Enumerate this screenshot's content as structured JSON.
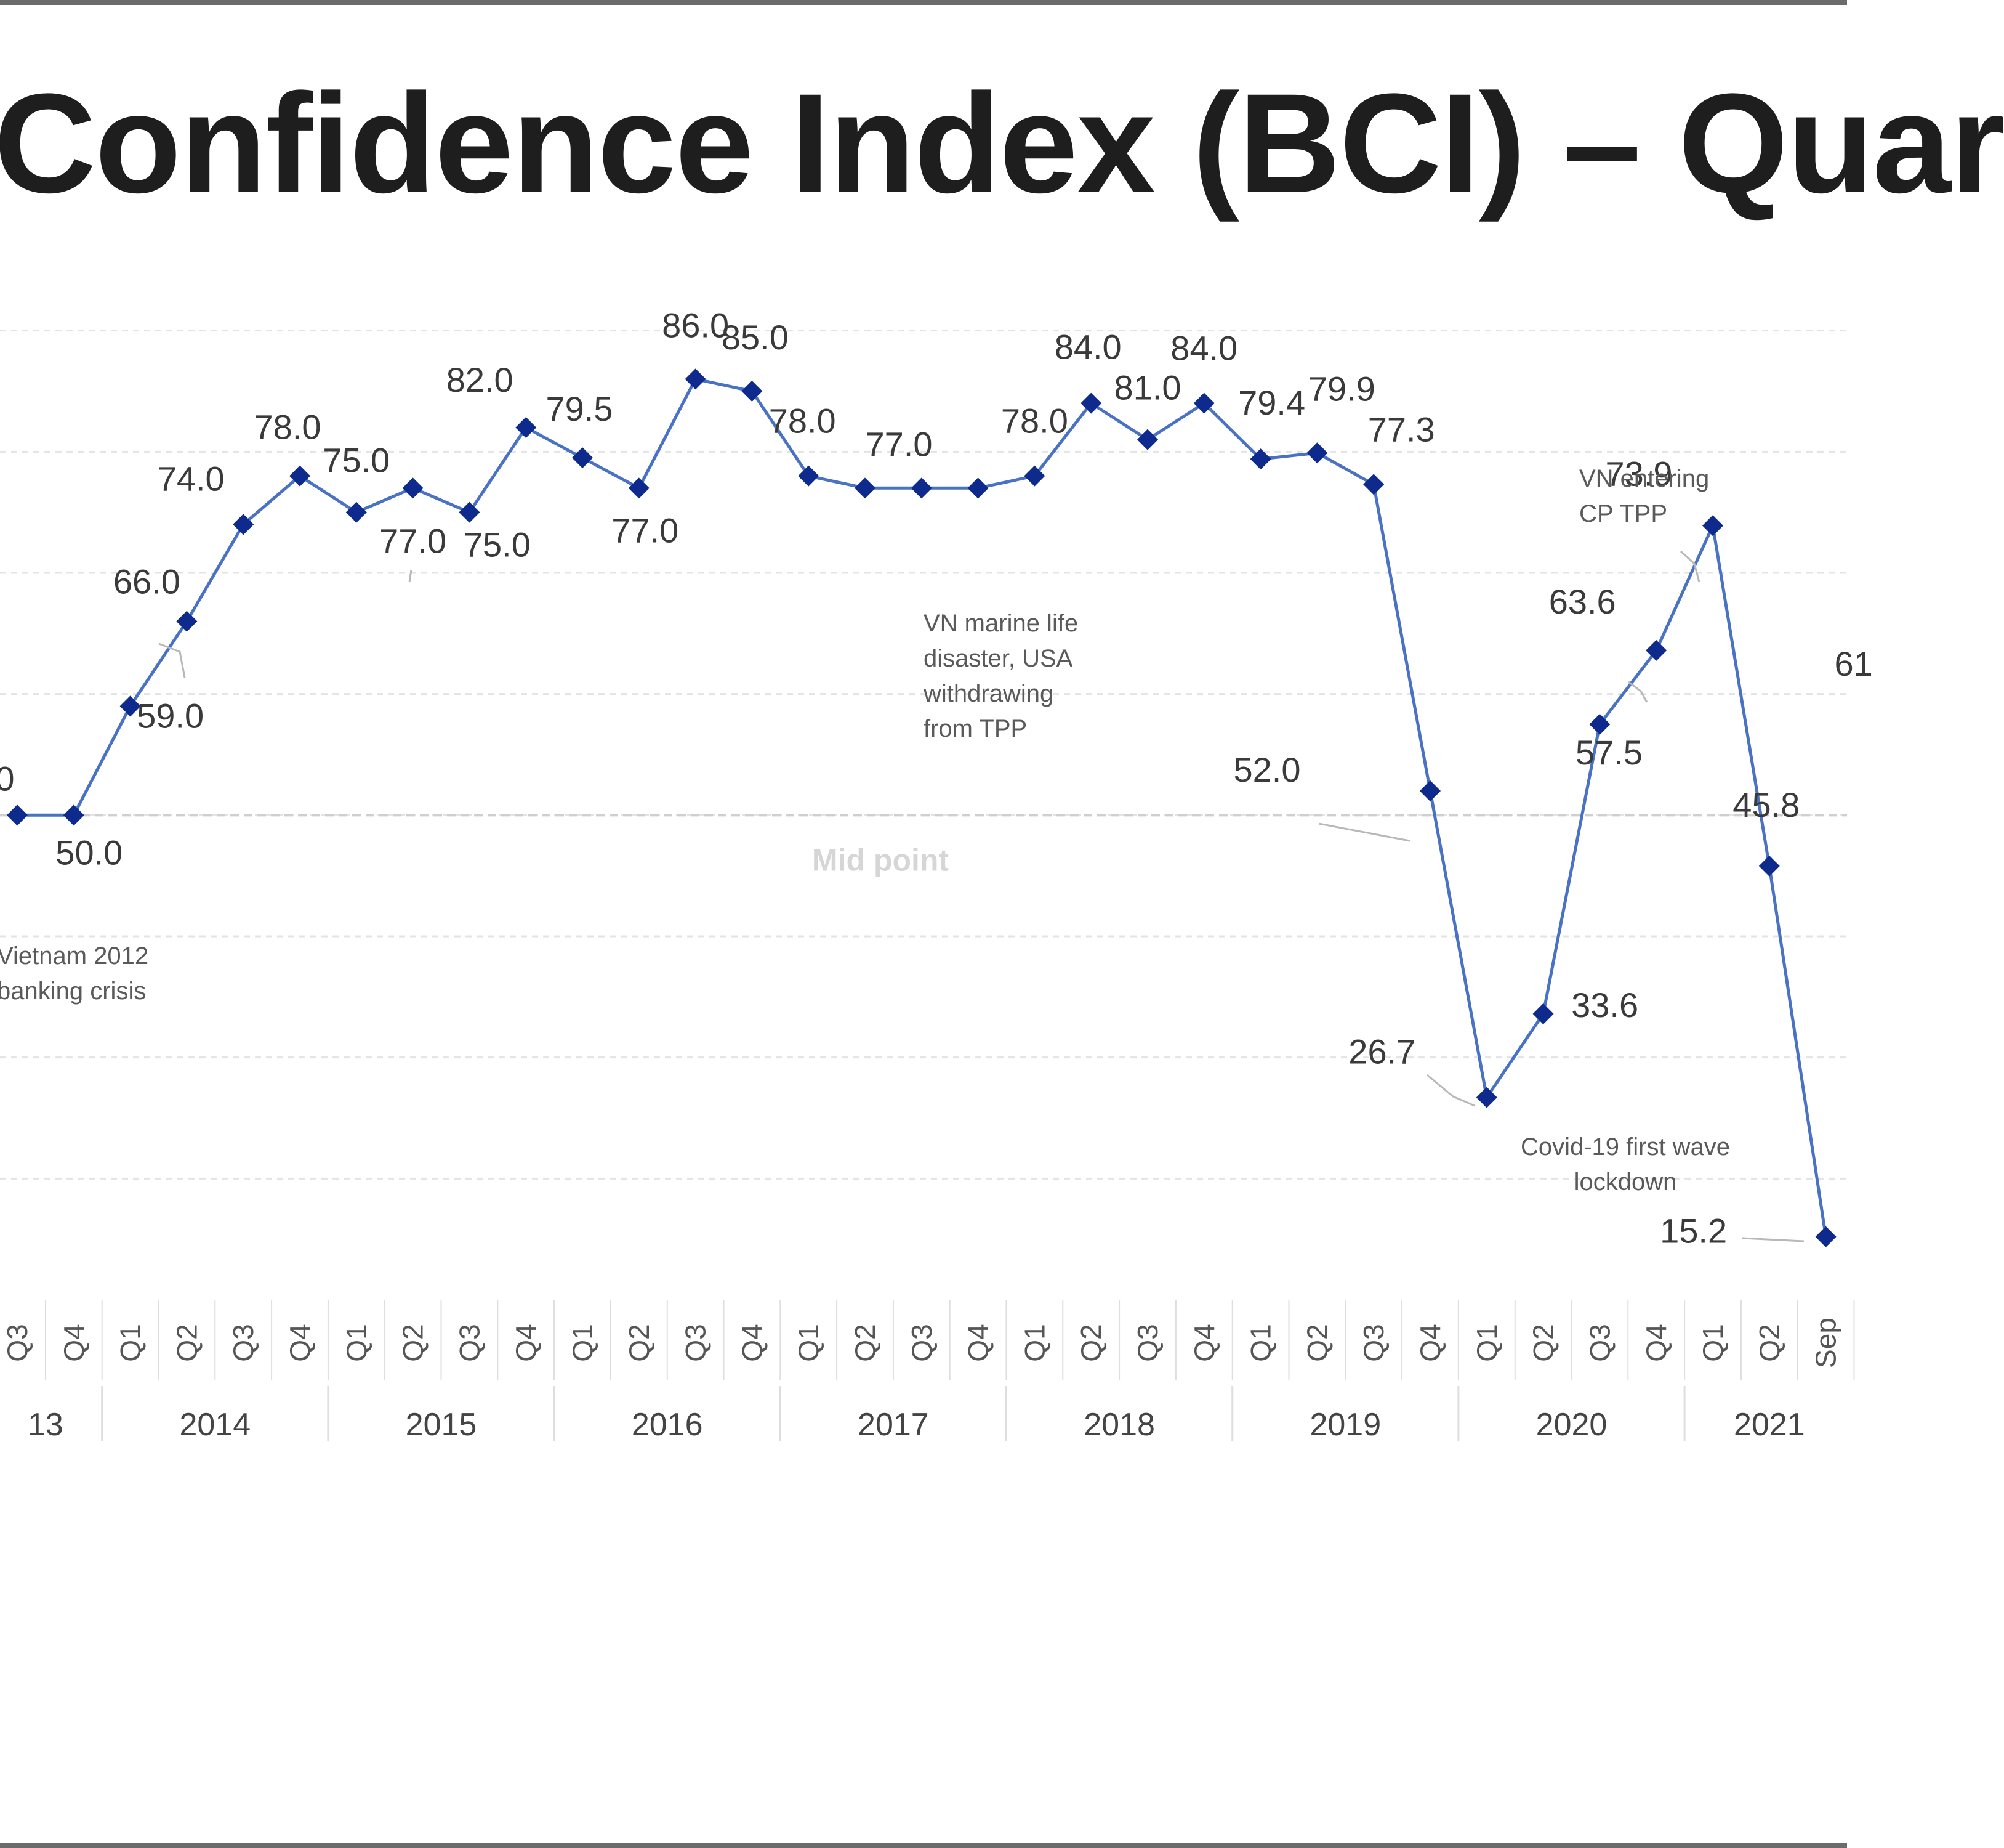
{
  "chart_data": {
    "type": "line",
    "title": "Confidence Index (BCI) – Quar",
    "x": [
      "2013-Q3",
      "2013-Q4",
      "2014-Q1",
      "2014-Q2",
      "2014-Q3",
      "2014-Q4",
      "2015-Q1",
      "2015-Q2",
      "2015-Q3",
      "2015-Q4",
      "2016-Q1",
      "2016-Q2",
      "2016-Q3",
      "2016-Q4",
      "2017-Q1",
      "2017-Q2",
      "2017-Q3",
      "2017-Q4",
      "2018-Q1",
      "2018-Q2",
      "2018-Q3",
      "2018-Q4",
      "2019-Q1",
      "2019-Q2",
      "2019-Q3",
      "2019-Q4",
      "2020-Q1",
      "2020-Q2",
      "2020-Q3",
      "2020-Q4",
      "2021-Q1",
      "2021-Q2",
      "2021-Sep"
    ],
    "tick_labels": [
      "Q3",
      "Q4",
      "Q1",
      "Q2",
      "Q3",
      "Q4",
      "Q1",
      "Q2",
      "Q3",
      "Q4",
      "Q1",
      "Q2",
      "Q3",
      "Q4",
      "Q1",
      "Q2",
      "Q3",
      "Q4",
      "Q1",
      "Q2",
      "Q3",
      "Q4",
      "Q1",
      "Q2",
      "Q3",
      "Q4",
      "Q1",
      "Q2",
      "Q3",
      "Q4",
      "Q1",
      "Q2",
      "Sep"
    ],
    "years": [
      {
        "label": "13",
        "start": 0,
        "end": 1
      },
      {
        "label": "2014",
        "start": 2,
        "end": 5
      },
      {
        "label": "2015",
        "start": 6,
        "end": 9
      },
      {
        "label": "2016",
        "start": 10,
        "end": 13
      },
      {
        "label": "2017",
        "start": 14,
        "end": 17
      },
      {
        "label": "2018",
        "start": 18,
        "end": 21
      },
      {
        "label": "2019",
        "start": 22,
        "end": 25
      },
      {
        "label": "2020",
        "start": 26,
        "end": 29
      },
      {
        "label": "2021",
        "start": 30,
        "end": 32
      }
    ],
    "series": [
      {
        "values": [
          50.0,
          50.0,
          59.0,
          66.0,
          74.0,
          78.0,
          75.0,
          77.0,
          75.0,
          82.0,
          79.5,
          77.0,
          86.0,
          85.0,
          78.0,
          77.0,
          77.0,
          77.0,
          78.0,
          84.0,
          81.0,
          84.0,
          79.4,
          79.9,
          77.3,
          52.0,
          26.7,
          33.6,
          57.5,
          63.6,
          73.9,
          45.8,
          15.2
        ],
        "labels": [
          "",
          "50.0",
          "59.0",
          "66.0",
          "74.0",
          "78.0",
          "75.0",
          "77.0",
          "75.0",
          "82.0",
          "79.5",
          "77.0",
          "86.0",
          "85.0",
          "78.0",
          "77.0",
          "",
          "",
          "78.0",
          "84.0",
          "81.0",
          "84.0",
          "79.4",
          "79.9",
          "77.3",
          "52.0",
          "26.7",
          "33.6",
          "57.5",
          "63.6",
          "73.9",
          "45.8",
          "15.2"
        ]
      }
    ],
    "partial_labels": [
      {
        "text": "0",
        "x": 0
      },
      {
        "text": "61",
        "x": 32
      }
    ],
    "ylim": [
      10,
      100
    ],
    "midpoint": {
      "value": 50,
      "label": "Mid point"
    },
    "grid": true,
    "annotations": [
      {
        "lines": [
          "Vietnam 2012",
          "banking crisis"
        ]
      },
      {
        "lines": [
          "VN marine life",
          "disaster, USA",
          "withdrawing",
          "from TPP"
        ]
      },
      {
        "lines": [
          "VN entering",
          "CP TPP"
        ]
      },
      {
        "lines": [
          "Covid-19 first wave",
          "lockdown"
        ]
      }
    ],
    "colors": {
      "line": "#4a72c4",
      "marker": "#0d2a8c",
      "grid": "#e3e3e3"
    }
  }
}
